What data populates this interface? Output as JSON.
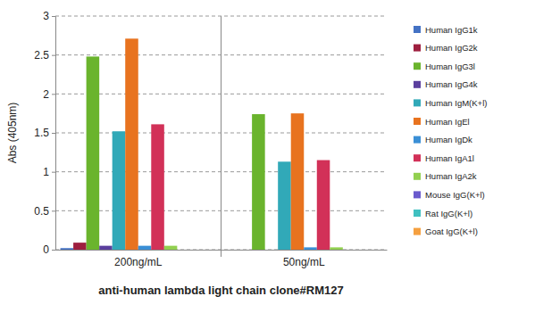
{
  "chart_data": {
    "type": "bar",
    "categories": [
      "200ng/mL",
      "50ng/mL"
    ],
    "x_label": "anti-human lambda light chain clone#RM127",
    "y_label": "Abs (405nm)",
    "ylim": [
      0,
      3
    ],
    "yticks": [
      0,
      0.5,
      1,
      1.5,
      2,
      2.5,
      3
    ],
    "grid": true,
    "legend": "right",
    "series": [
      {
        "name": "Human IgG1k",
        "color": "#4472c4",
        "values": [
          0.02,
          0
        ]
      },
      {
        "name": "Human IgG2k",
        "color": "#9e1f3f",
        "values": [
          0.09,
          0
        ]
      },
      {
        "name": "Human IgG3l",
        "color": "#6ab42d",
        "values": [
          2.48,
          1.74
        ]
      },
      {
        "name": "Human IgG4k",
        "color": "#5b3f9e",
        "values": [
          0.05,
          0
        ]
      },
      {
        "name": "Human IgM(K+l)",
        "color": "#31a9b8",
        "values": [
          1.52,
          1.13
        ]
      },
      {
        "name": "Human IgEl",
        "color": "#e8731f",
        "values": [
          2.71,
          1.75
        ]
      },
      {
        "name": "Human IgDk",
        "color": "#3a8fd6",
        "values": [
          0.05,
          0.03
        ]
      },
      {
        "name": "Human IgA1l",
        "color": "#d23158",
        "values": [
          1.61,
          1.15
        ]
      },
      {
        "name": "Human IgA2k",
        "color": "#92d050",
        "values": [
          0.05,
          0.03
        ]
      },
      {
        "name": "Mouse IgG(K+l)",
        "color": "#6a5acd",
        "values": [
          0,
          0
        ]
      },
      {
        "name": "Rat IgG(K+l)",
        "color": "#40c0c0",
        "values": [
          0,
          0
        ]
      },
      {
        "name": "Goat IgG(K+l)",
        "color": "#f5a040",
        "values": [
          0,
          0
        ]
      }
    ]
  }
}
